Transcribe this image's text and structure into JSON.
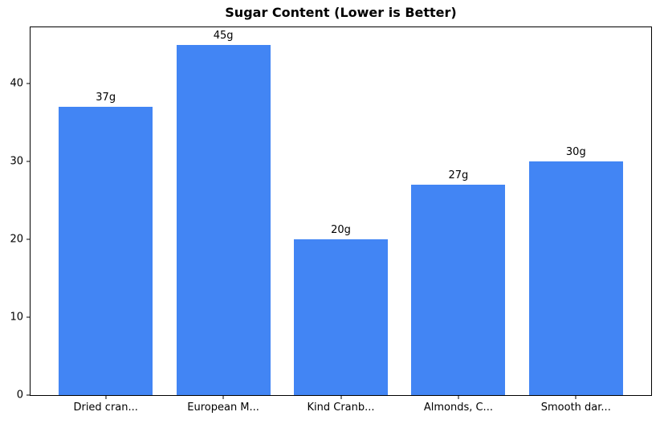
{
  "title": "Sugar Content (Lower is Better)",
  "colors": {
    "bar": "#4285F4",
    "axis": "#000000",
    "background": "#FFFFFF",
    "text": "#000000"
  },
  "chart_data": {
    "type": "bar",
    "title": "Sugar Content (Lower is Better)",
    "xlabel": "",
    "ylabel": "",
    "categories": [
      "Dried cran...",
      "European M...",
      "Kind Cranb...",
      "Almonds, C...",
      "Smooth dar..."
    ],
    "values": [
      37,
      45,
      20,
      27,
      30
    ],
    "bar_labels": [
      "37g",
      "45g",
      "20g",
      "27g",
      "30g"
    ],
    "yticks": [
      0,
      10,
      20,
      30,
      40
    ],
    "ylim": [
      0,
      47.25
    ],
    "xlim": [
      -0.64,
      4.64
    ],
    "bar_width": 0.8,
    "grid": false,
    "legend": "none",
    "frame": "full-box"
  }
}
